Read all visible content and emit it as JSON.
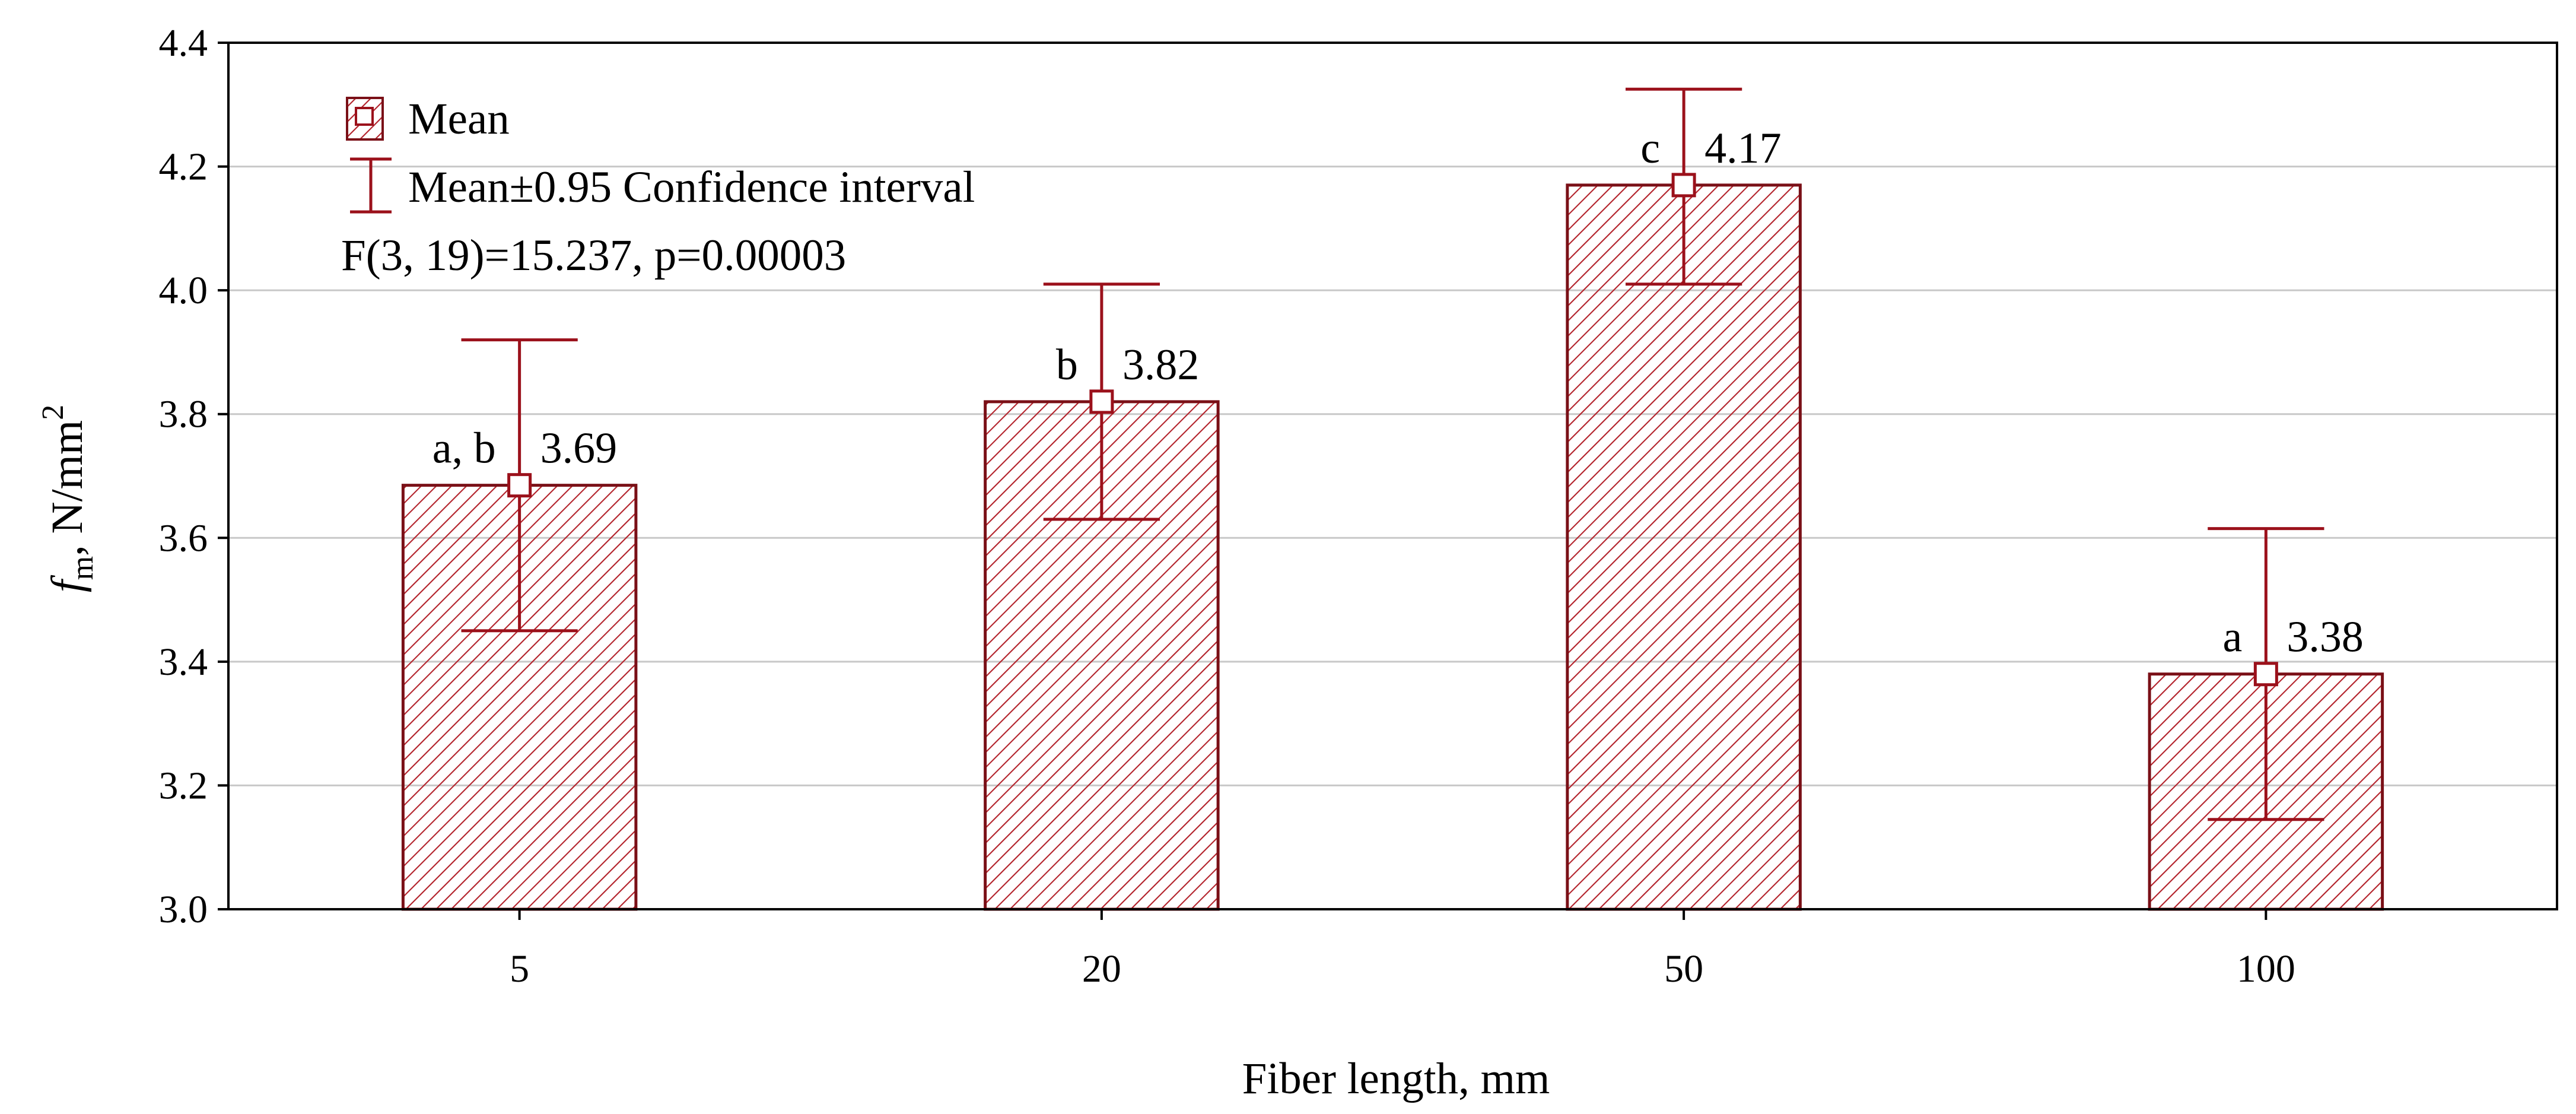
{
  "colors": {
    "bar_stroke": "#7a1017",
    "hatch": "#b3222b",
    "error_bar": "#9b111b",
    "grid": "#c8c8c8",
    "axis": "#000000",
    "background": "#ffffff"
  },
  "legend": {
    "mean_label": "Mean",
    "ci_label": "Mean±0.95 Confidence interval",
    "stats_label": "F(3, 19)=15.237, p=0.00003",
    "mean_icon": "square-marker-icon",
    "ci_icon": "error-bar-icon"
  },
  "chart_data": {
    "type": "bar",
    "title": "",
    "xlabel": "Fiber length, mm",
    "ylabel_main": "f",
    "ylabel_sub": "m",
    "ylabel_rest": ", N/mm",
    "ylabel_sup": "2",
    "categories": [
      "5",
      "20",
      "50",
      "100"
    ],
    "values": [
      3.685,
      3.82,
      4.17,
      3.38
    ],
    "value_labels": [
      "3.69",
      "3.82",
      "4.17",
      "3.38"
    ],
    "ci_lower": [
      3.45,
      3.63,
      4.01,
      3.145
    ],
    "ci_upper": [
      3.92,
      4.01,
      4.325,
      3.615
    ],
    "group_letters": [
      "a, b",
      "b",
      "c",
      "a"
    ],
    "ylim": [
      3.0,
      4.4
    ],
    "yticks": [
      3.0,
      3.2,
      3.4,
      3.6,
      3.8,
      4.0,
      4.2,
      4.4
    ],
    "ytick_labels": [
      "3.0",
      "3.2",
      "3.4",
      "3.6",
      "3.8",
      "4.0",
      "4.2",
      "4.4"
    ],
    "grid": true,
    "legend_position": "top-left"
  }
}
